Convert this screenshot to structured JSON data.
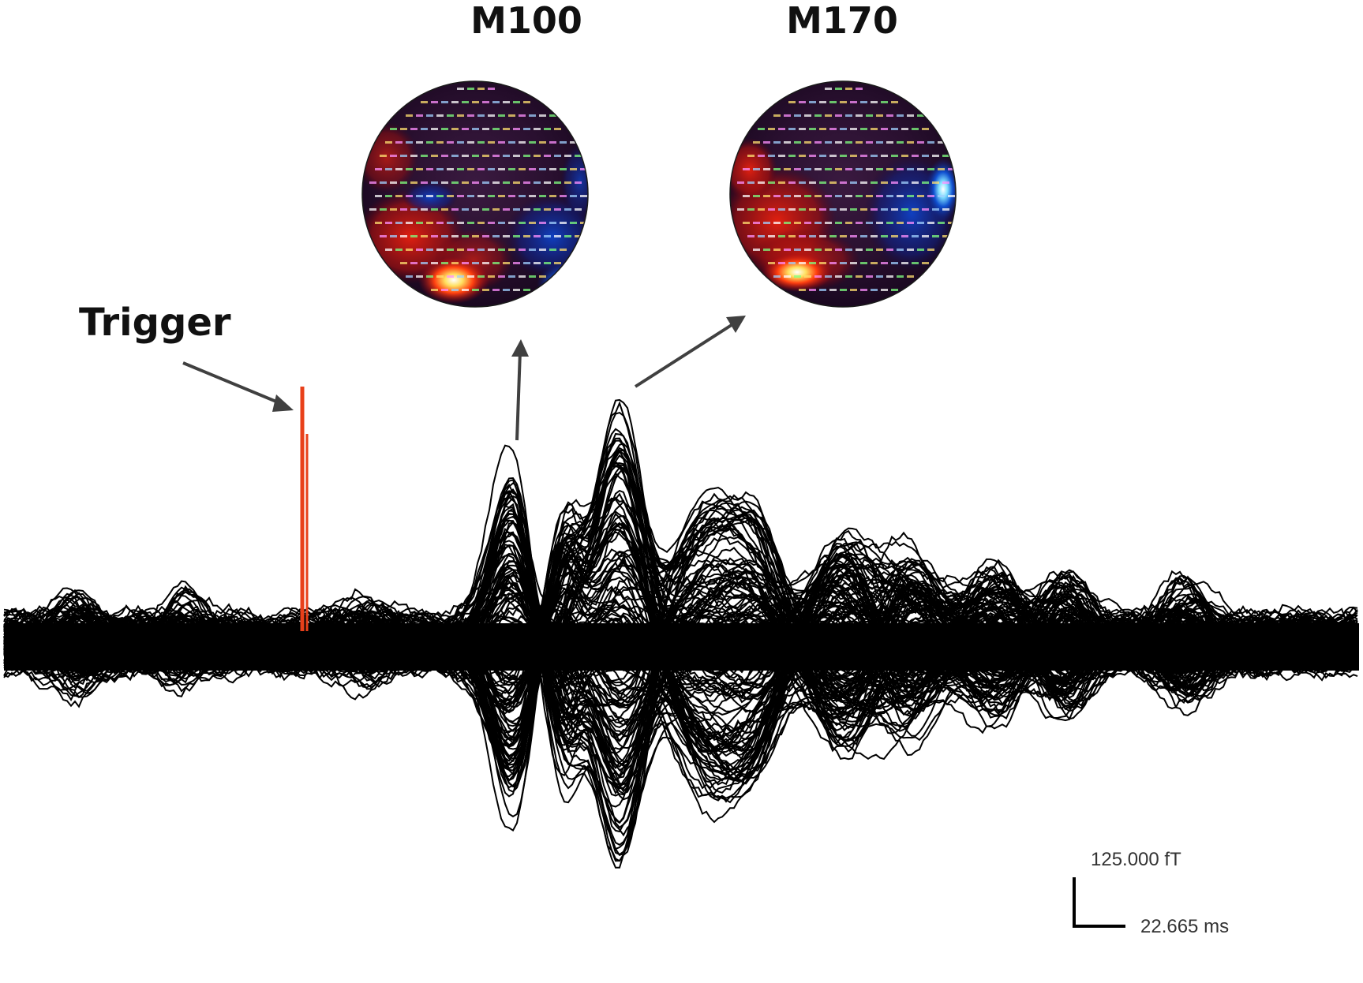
{
  "labels": {
    "m100": "M100",
    "m170": "M170",
    "trigger": "Trigger"
  },
  "scale_bar": {
    "amplitude_label": "125.000 fT",
    "time_label": "22.665 ms"
  },
  "colors": {
    "trace": "#000000",
    "trigger": "#e8401a",
    "arrow": "#404040",
    "map_positive": "#e02010",
    "map_negative": "#1040c0",
    "map_background": "#2a1030"
  },
  "icons": {
    "m100_map": "brain-topography-map",
    "m170_map": "brain-topography-map"
  }
}
